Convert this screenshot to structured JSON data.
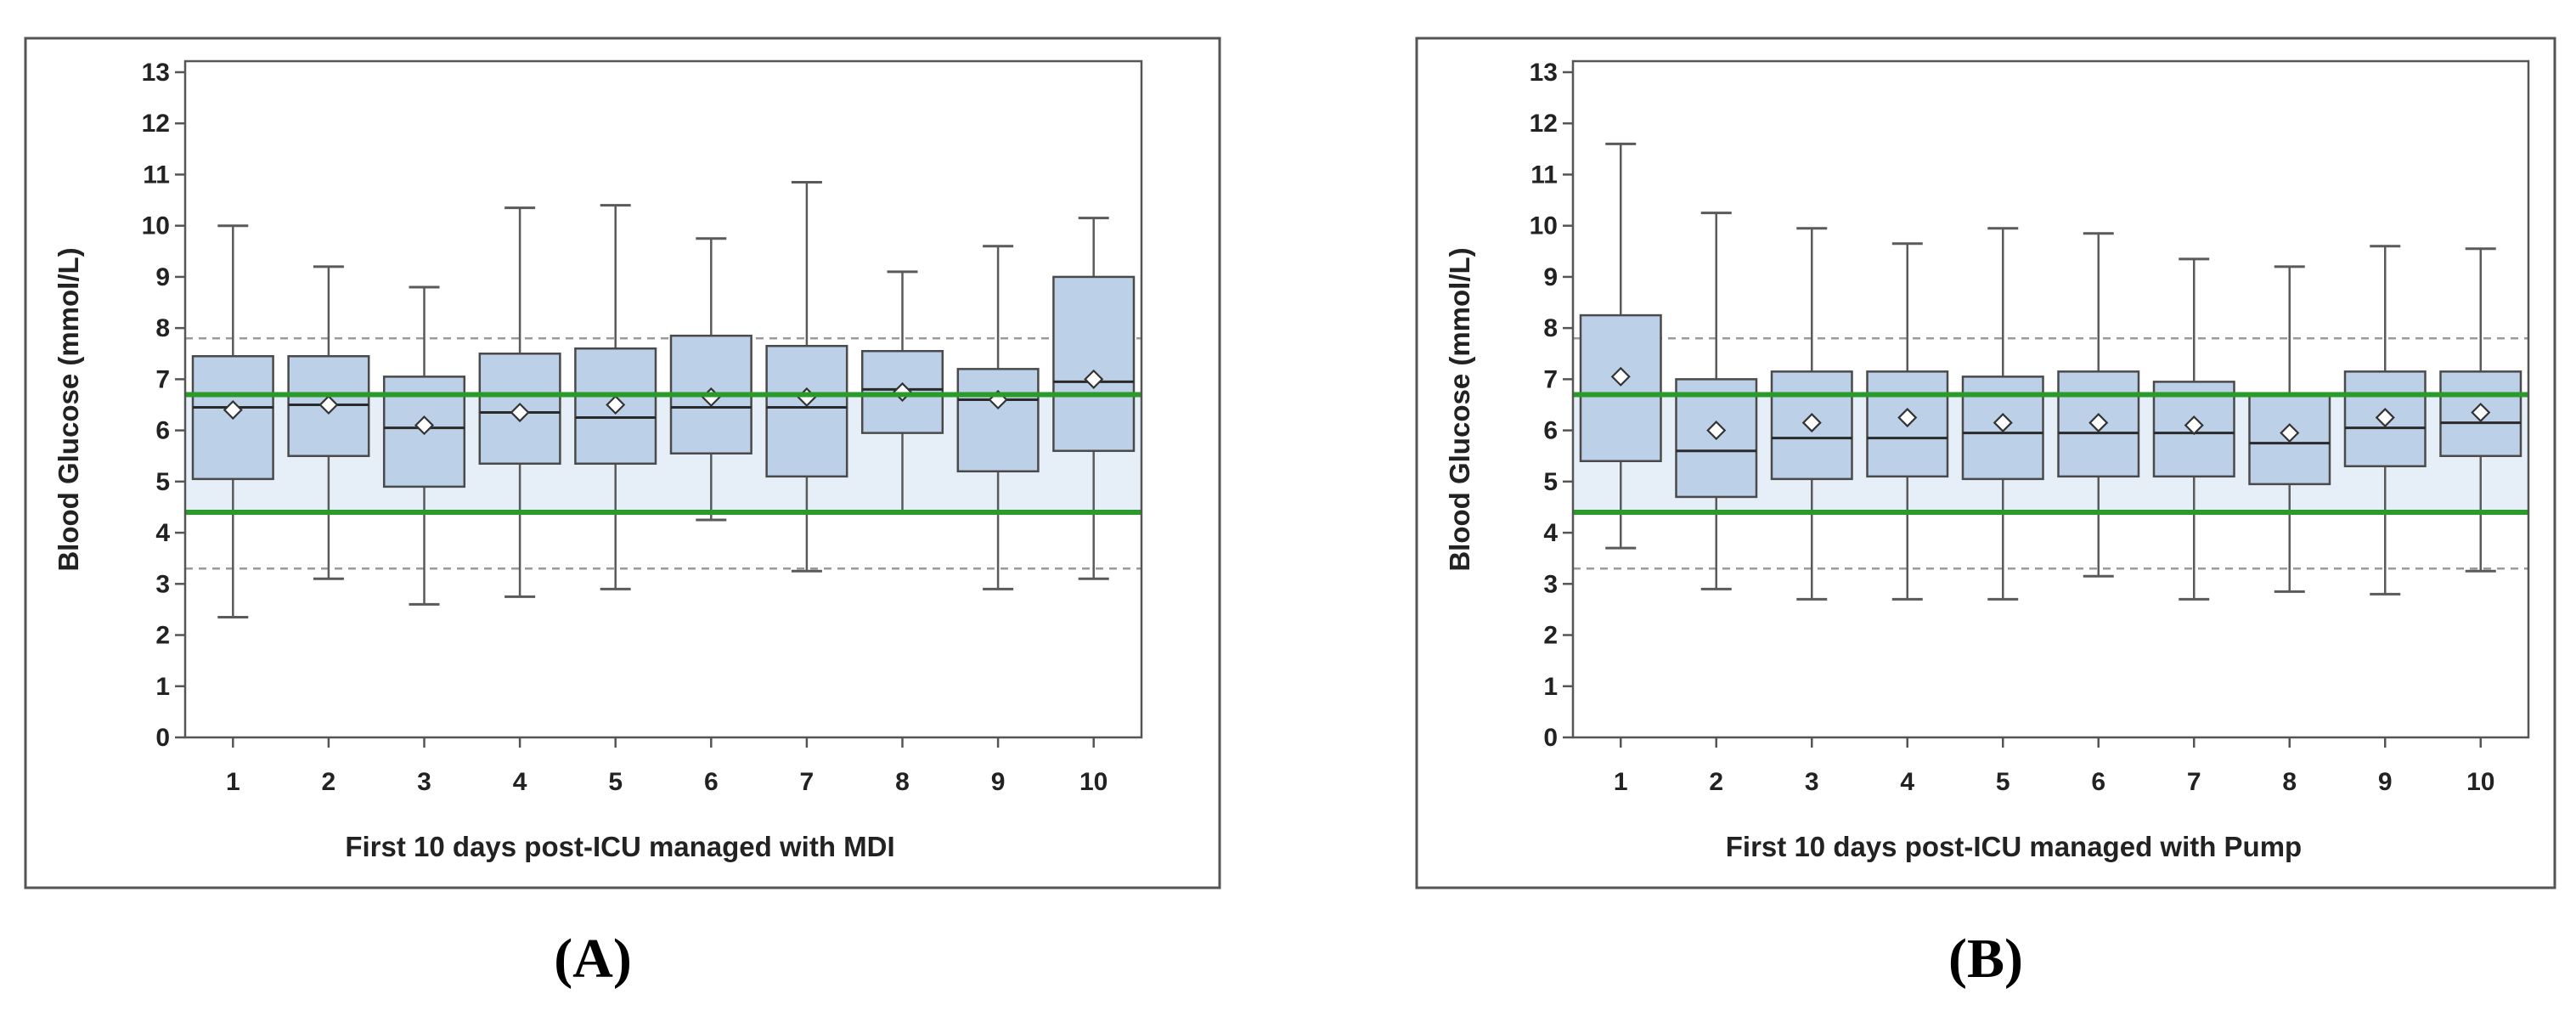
{
  "colors": {
    "box_fill": "#bcd0e8",
    "target_band": "#e6eef8",
    "target_line": "#2a9a2a",
    "dashed_line": "#9a9a9a",
    "box_stroke": "#4a4a4a",
    "whisker": "#5a5a5a",
    "frame": "#555555"
  },
  "chart_data": [
    {
      "type": "box",
      "panel": "(A)",
      "xlabel": "First 10 days post-ICU managed with MDI",
      "ylabel": "Blood Glucose (mmol/L)",
      "ylim": [
        0,
        13
      ],
      "yticks": [
        "0",
        "1",
        "2",
        "3",
        "4",
        "5",
        "6",
        "7",
        "8",
        "9",
        "10",
        "11",
        "12",
        "13"
      ],
      "categories": [
        "1",
        "2",
        "3",
        "4",
        "5",
        "6",
        "7",
        "8",
        "9",
        "10"
      ],
      "target_range": [
        4.4,
        6.7
      ],
      "dashed_lines": [
        3.3,
        7.8
      ],
      "boxes": [
        {
          "min": 2.35,
          "q1": 5.05,
          "median": 6.45,
          "q3": 7.45,
          "max": 10.0,
          "mean": 6.4
        },
        {
          "min": 3.1,
          "q1": 5.5,
          "median": 6.5,
          "q3": 7.45,
          "max": 9.2,
          "mean": 6.5
        },
        {
          "min": 2.6,
          "q1": 4.9,
          "median": 6.05,
          "q3": 7.05,
          "max": 8.8,
          "mean": 6.1
        },
        {
          "min": 2.75,
          "q1": 5.35,
          "median": 6.35,
          "q3": 7.5,
          "max": 10.35,
          "mean": 6.35
        },
        {
          "min": 2.9,
          "q1": 5.35,
          "median": 6.25,
          "q3": 7.6,
          "max": 10.4,
          "mean": 6.5
        },
        {
          "min": 4.25,
          "q1": 5.55,
          "median": 6.45,
          "q3": 7.85,
          "max": 9.75,
          "mean": 6.65
        },
        {
          "min": 3.25,
          "q1": 5.1,
          "median": 6.45,
          "q3": 7.65,
          "max": 10.85,
          "mean": 6.65
        },
        {
          "min": 4.4,
          "q1": 5.95,
          "median": 6.8,
          "q3": 7.55,
          "max": 9.1,
          "mean": 6.75
        },
        {
          "min": 2.9,
          "q1": 5.2,
          "median": 6.6,
          "q3": 7.2,
          "max": 9.6,
          "mean": 6.6
        },
        {
          "min": 3.1,
          "q1": 5.6,
          "median": 6.95,
          "q3": 9.0,
          "max": 10.15,
          "mean": 7.0
        }
      ]
    },
    {
      "type": "box",
      "panel": "(B)",
      "xlabel": "First 10 days post-ICU managed with Pump",
      "ylabel": "Blood Glucose (mmol/L)",
      "ylim": [
        0,
        13
      ],
      "yticks": [
        "0",
        "1",
        "2",
        "3",
        "4",
        "5",
        "6",
        "7",
        "8",
        "9",
        "10",
        "11",
        "12",
        "13"
      ],
      "categories": [
        "1",
        "2",
        "3",
        "4",
        "5",
        "6",
        "7",
        "8",
        "9",
        "10"
      ],
      "target_range": [
        4.4,
        6.7
      ],
      "dashed_lines": [
        3.3,
        7.8
      ],
      "boxes": [
        {
          "min": 3.7,
          "q1": 5.4,
          "median": 6.7,
          "q3": 8.25,
          "max": 11.6,
          "mean": 7.05
        },
        {
          "min": 2.9,
          "q1": 4.7,
          "median": 5.6,
          "q3": 7.0,
          "max": 10.25,
          "mean": 6.0
        },
        {
          "min": 2.7,
          "q1": 5.05,
          "median": 5.85,
          "q3": 7.15,
          "max": 9.95,
          "mean": 6.15
        },
        {
          "min": 2.7,
          "q1": 5.1,
          "median": 5.85,
          "q3": 7.15,
          "max": 9.65,
          "mean": 6.25
        },
        {
          "min": 2.7,
          "q1": 5.05,
          "median": 5.95,
          "q3": 7.05,
          "max": 9.95,
          "mean": 6.15
        },
        {
          "min": 3.15,
          "q1": 5.1,
          "median": 5.95,
          "q3": 7.15,
          "max": 9.85,
          "mean": 6.15
        },
        {
          "min": 2.7,
          "q1": 5.1,
          "median": 5.95,
          "q3": 6.95,
          "max": 9.35,
          "mean": 6.1
        },
        {
          "min": 2.85,
          "q1": 4.95,
          "median": 5.75,
          "q3": 6.7,
          "max": 9.2,
          "mean": 5.95
        },
        {
          "min": 2.8,
          "q1": 5.3,
          "median": 6.05,
          "q3": 7.15,
          "max": 9.6,
          "mean": 6.25
        },
        {
          "min": 3.25,
          "q1": 5.5,
          "median": 6.15,
          "q3": 7.15,
          "max": 9.55,
          "mean": 6.35
        }
      ]
    }
  ]
}
